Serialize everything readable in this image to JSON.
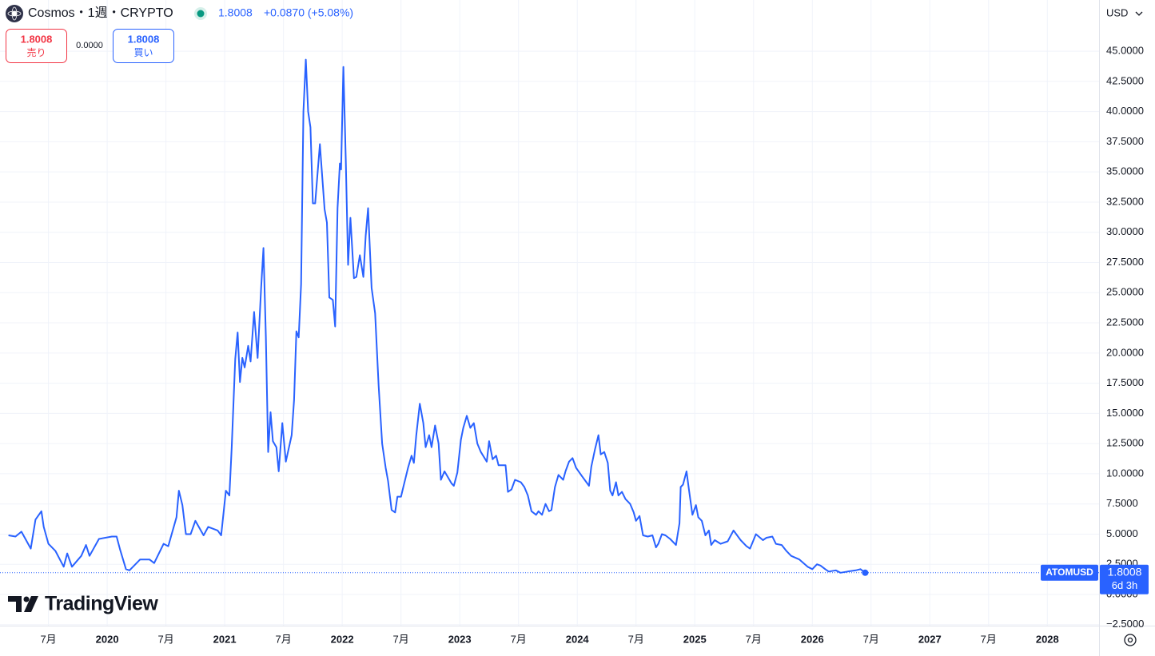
{
  "header": {
    "title": "Cosmos・1週・CRYPTO",
    "change": "+0.0870 (+5.08%)",
    "currency": "USD"
  },
  "trade": {
    "sell_price": "1.8008",
    "sell_label": "売り",
    "spread": "0.0000",
    "buy_price": "1.8008",
    "buy_label": "買い"
  },
  "countdown": "6d 3h",
  "logo": "TradingView",
  "chart_data": {
    "type": "line",
    "x": [
      2019.16,
      2019.22,
      2019.27,
      2019.35,
      2019.39,
      2019.44,
      2019.46,
      2019.5,
      2019.56,
      2019.63,
      2019.66,
      2019.7,
      2019.78,
      2019.82,
      2019.85,
      2019.93,
      2020.04,
      2020.08,
      2020.11,
      2020.16,
      2020.19,
      2020.28,
      2020.36,
      2020.4,
      2020.48,
      2020.52,
      2020.59,
      2020.61,
      2020.64,
      2020.67,
      2020.71,
      2020.75,
      2020.82,
      2020.86,
      2020.94,
      2020.97,
      2021.01,
      2021.04,
      2021.06,
      2021.09,
      2021.11,
      2021.13,
      2021.15,
      2021.17,
      2021.2,
      2021.22,
      2021.25,
      2021.28,
      2021.31,
      2021.33,
      2021.35,
      2021.37,
      2021.39,
      2021.41,
      2021.44,
      2021.46,
      2021.49,
      2021.52,
      2021.57,
      2021.59,
      2021.61,
      2021.63,
      2021.65,
      2021.67,
      2021.69,
      2021.71,
      2021.73,
      2021.75,
      2021.77,
      2021.81,
      2021.85,
      2021.87,
      2021.89,
      2021.92,
      2021.94,
      2021.96,
      2021.98,
      2021.99,
      2022.01,
      2022.03,
      2022.05,
      2022.07,
      2022.1,
      2022.12,
      2022.15,
      2022.18,
      2022.2,
      2022.22,
      2022.25,
      2022.28,
      2022.31,
      2022.34,
      2022.37,
      2022.39,
      2022.42,
      2022.45,
      2022.47,
      2022.5,
      2022.52,
      2022.56,
      2022.59,
      2022.61,
      2022.63,
      2022.66,
      2022.69,
      2022.71,
      2022.74,
      2022.76,
      2022.79,
      2022.82,
      2022.84,
      2022.87,
      2022.93,
      2022.95,
      2022.98,
      2023.01,
      2023.03,
      2023.06,
      2023.09,
      2023.12,
      2023.15,
      2023.18,
      2023.23,
      2023.25,
      2023.28,
      2023.31,
      2023.33,
      2023.39,
      2023.41,
      2023.44,
      2023.47,
      2023.52,
      2023.55,
      2023.58,
      2023.61,
      2023.65,
      2023.67,
      2023.7,
      2023.73,
      2023.76,
      2023.78,
      2023.81,
      2023.84,
      2023.88,
      2023.9,
      2023.93,
      2023.96,
      2023.99,
      2024.04,
      2024.1,
      2024.12,
      2024.15,
      2024.18,
      2024.2,
      2024.23,
      2024.26,
      2024.28,
      2024.3,
      2024.33,
      2024.35,
      2024.38,
      2024.41,
      2024.45,
      2024.48,
      2024.5,
      2024.53,
      2024.56,
      2024.6,
      2024.64,
      2024.67,
      2024.69,
      2024.72,
      2024.75,
      2024.79,
      2024.84,
      2024.87,
      2024.88,
      2024.9,
      2024.93,
      2024.95,
      2024.98,
      2025.01,
      2025.03,
      2025.06,
      2025.09,
      2025.12,
      2025.14,
      2025.17,
      2025.22,
      2025.28,
      2025.33,
      2025.39,
      2025.44,
      2025.47,
      2025.5,
      2025.52,
      2025.58,
      2025.61,
      2025.66,
      2025.69,
      2025.74,
      2025.78,
      2025.82,
      2025.89,
      2025.96,
      2026.0,
      2026.04,
      2026.07,
      2026.11,
      2026.14,
      2026.2,
      2026.24,
      2026.3,
      2026.37,
      2026.41,
      2026.45
    ],
    "series": [
      {
        "name": "ATOMUSD",
        "color": "#2962ff",
        "values": [
          4.9,
          4.8,
          5.2,
          3.8,
          6.2,
          6.9,
          5.6,
          4.2,
          3.6,
          2.3,
          3.4,
          2.3,
          3.2,
          4.1,
          3.2,
          4.6,
          4.8,
          4.8,
          3.7,
          2.1,
          2.0,
          2.9,
          2.9,
          2.6,
          4.2,
          4.0,
          6.4,
          8.6,
          7.4,
          5.0,
          5.0,
          6.1,
          4.9,
          5.6,
          5.3,
          4.9,
          8.6,
          8.2,
          12.2,
          19.5,
          21.7,
          17.6,
          19.6,
          18.8,
          20.6,
          19.3,
          23.4,
          19.6,
          25.4,
          28.7,
          21.4,
          11.8,
          15.1,
          12.7,
          12.2,
          10.2,
          14.2,
          11.0,
          13.2,
          16.1,
          21.8,
          21.3,
          25.7,
          40.0,
          44.3,
          40.0,
          38.7,
          32.4,
          32.4,
          37.3,
          31.9,
          30.8,
          24.6,
          24.4,
          22.2,
          32.0,
          35.7,
          35.2,
          43.7,
          36.0,
          27.3,
          31.2,
          26.2,
          26.3,
          28.1,
          26.3,
          29.7,
          32.0,
          25.4,
          23.3,
          17.3,
          12.5,
          10.5,
          9.4,
          7.0,
          6.8,
          8.1,
          8.1,
          8.9,
          10.5,
          11.5,
          10.9,
          13.2,
          15.8,
          14.2,
          12.2,
          13.2,
          12.2,
          14.0,
          12.5,
          9.5,
          10.2,
          9.2,
          9.0,
          10.1,
          12.8,
          13.8,
          14.8,
          13.8,
          14.2,
          12.5,
          11.8,
          11.0,
          12.7,
          11.2,
          11.5,
          10.7,
          10.7,
          8.5,
          8.7,
          9.5,
          9.3,
          8.9,
          8.2,
          6.9,
          6.6,
          6.9,
          6.6,
          7.5,
          6.9,
          7.0,
          8.9,
          9.9,
          9.5,
          10.2,
          11.0,
          11.3,
          10.5,
          9.8,
          9.0,
          10.6,
          12.0,
          13.2,
          11.6,
          11.8,
          10.9,
          8.6,
          8.2,
          9.3,
          8.2,
          8.5,
          7.9,
          7.5,
          6.8,
          6.1,
          6.5,
          4.9,
          4.8,
          4.9,
          3.9,
          4.2,
          5.0,
          4.9,
          4.6,
          4.1,
          5.9,
          8.9,
          9.1,
          10.2,
          8.7,
          6.6,
          7.4,
          6.4,
          6.1,
          4.9,
          5.3,
          4.1,
          4.5,
          4.2,
          4.4,
          5.3,
          4.5,
          4.0,
          3.8,
          4.5,
          5.0,
          4.5,
          4.7,
          4.8,
          4.2,
          4.1,
          3.6,
          3.2,
          2.9,
          2.3,
          2.1,
          2.5,
          2.4,
          2.1,
          1.9,
          2.0,
          1.8,
          1.9,
          2.0,
          2.1,
          1.8008
        ]
      }
    ],
    "xlim": [
      2019.088,
      2028.44
    ],
    "xticks": [
      {
        "value": 2019.5,
        "label": "7月"
      },
      2020,
      {
        "value": 2020.5,
        "label": "7月"
      },
      2021,
      {
        "value": 2021.5,
        "label": "7月"
      },
      2022,
      {
        "value": 2022.5,
        "label": "7月"
      },
      2023,
      {
        "value": 2023.5,
        "label": "7月"
      },
      2024,
      {
        "value": 2024.5,
        "label": "7月"
      },
      2025,
      {
        "value": 2025.5,
        "label": "7月"
      },
      2026,
      {
        "value": 2026.5,
        "label": "7月"
      },
      2027,
      {
        "value": 2027.5,
        "label": "7月"
      },
      2028
    ],
    "ylim": [
      -2.58,
      49.24
    ],
    "yticks": [
      {
        "value": -2.5,
        "label": "−2.5000"
      },
      {
        "value": 0,
        "label": "0.0000"
      },
      {
        "value": 2.5,
        "label": "2.5000"
      },
      {
        "value": 5,
        "label": "5.0000"
      },
      {
        "value": 7.5,
        "label": "7.5000"
      },
      {
        "value": 10,
        "label": "10.0000"
      },
      {
        "value": 12.5,
        "label": "12.5000"
      },
      {
        "value": 15,
        "label": "15.0000"
      },
      {
        "value": 17.5,
        "label": "17.5000"
      },
      {
        "value": 20,
        "label": "20.0000"
      },
      {
        "value": 22.5,
        "label": "22.5000"
      },
      {
        "value": 25,
        "label": "25.0000"
      },
      {
        "value": 27.5,
        "label": "27.5000"
      },
      {
        "value": 30,
        "label": "30.0000"
      },
      {
        "value": 32.5,
        "label": "32.5000"
      },
      {
        "value": 35,
        "label": "35.0000"
      },
      {
        "value": 37.5,
        "label": "37.5000"
      },
      {
        "value": 40,
        "label": "40.0000"
      },
      {
        "value": 42.5,
        "label": "42.5000"
      },
      {
        "value": 45,
        "label": "45.0000"
      }
    ],
    "grid": true
  }
}
